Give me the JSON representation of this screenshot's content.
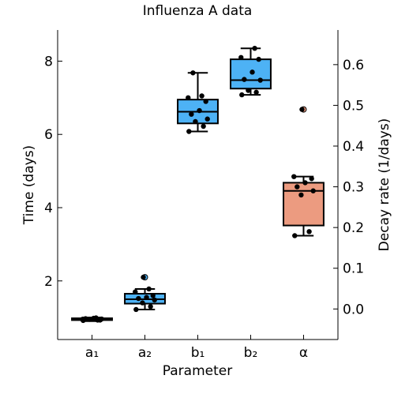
{
  "chart_data": {
    "type": "box",
    "title": "Influenza A data",
    "xlabel": "Parameter",
    "ylabel_left": "Time (days)",
    "ylabel_right": "Decay rate (1/days)",
    "categories": [
      "a₁",
      "a₂",
      "b₁",
      "b₂",
      "α"
    ],
    "left_axis": {
      "ylim": [
        0.4,
        8.85
      ],
      "ticks": [
        2,
        4,
        6,
        8
      ]
    },
    "right_axis": {
      "ylim": [
        -0.075,
        0.685
      ],
      "ticks": [
        0.0,
        0.1,
        0.2,
        0.3,
        0.4,
        0.5,
        0.6
      ]
    },
    "grid": false,
    "legend": "none",
    "colors": {
      "time_box": "#4db2f5",
      "rate_box": "#ec9b80",
      "point": "#000000",
      "outlier": "#4db2f5",
      "outlier_rate": "#ec9b80"
    },
    "series": [
      {
        "category": "a₁",
        "axis": "left",
        "box": {
          "min": 0.9,
          "q1": 0.93,
          "median": 0.95,
          "q3": 0.98,
          "max": 1.0
        },
        "points": [
          0.92,
          0.93,
          0.95,
          0.96,
          0.97,
          0.98,
          0.93,
          0.95,
          0.99
        ],
        "outliers": []
      },
      {
        "category": "a₂",
        "axis": "left",
        "box": {
          "min": 1.22,
          "q1": 1.38,
          "median": 1.5,
          "q3": 1.65,
          "max": 1.78
        },
        "points": [
          1.22,
          1.3,
          1.4,
          1.48,
          1.52,
          1.55,
          1.6,
          1.7,
          1.78
        ],
        "outliers": [
          2.1
        ]
      },
      {
        "category": "b₁",
        "axis": "left",
        "box": {
          "min": 6.08,
          "q1": 6.3,
          "median": 6.62,
          "q3": 6.95,
          "max": 7.68
        },
        "points": [
          6.08,
          6.22,
          6.35,
          6.42,
          6.55,
          6.65,
          6.9,
          7.0,
          7.05,
          7.68
        ],
        "outliers": []
      },
      {
        "category": "b₂",
        "axis": "left",
        "box": {
          "min": 7.08,
          "q1": 7.25,
          "median": 7.48,
          "q3": 8.05,
          "max": 8.35
        },
        "points": [
          7.08,
          7.15,
          7.2,
          7.48,
          7.5,
          7.7,
          8.05,
          8.1,
          8.35
        ],
        "outliers": []
      },
      {
        "category": "α",
        "axis": "right",
        "box": {
          "min": 0.18,
          "q1": 0.205,
          "median": 0.29,
          "q3": 0.31,
          "max": 0.325
        },
        "points": [
          0.18,
          0.19,
          0.28,
          0.29,
          0.3,
          0.31,
          0.32,
          0.325
        ],
        "outliers": [
          0.49
        ]
      }
    ]
  }
}
